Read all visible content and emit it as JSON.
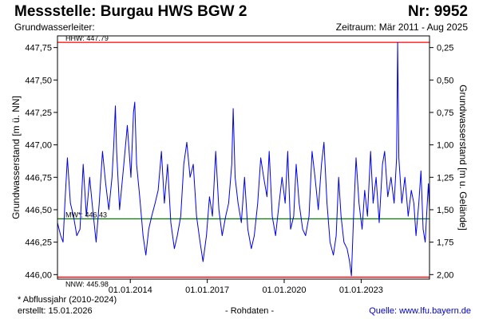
{
  "header": {
    "title": "Messstelle: Burgau HWS BGW 2",
    "nr": "Nr: 9952",
    "aquifer_label": "Grundwasserleiter:",
    "period": "Zeitraum: Mär 2011 - Aug 2025"
  },
  "footer": {
    "note": "* Abflussjahr (2010-2024)",
    "created": "erstellt:  15.01.2026",
    "raw": "- Rohdaten -",
    "source_prefix": "Quelle: ",
    "source_link": "www.lfu.bayern.de"
  },
  "colors": {
    "series": "#0000ee",
    "extreme_lines": "#ff0000",
    "mean_line": "#008000",
    "axes": "#000000"
  },
  "chart_data": {
    "type": "line",
    "ylabel": "Grundwasserstand [m ü. NN]",
    "y2label": "Grundwasserstand [m u. Gelände]",
    "ylim": [
      445.965,
      447.84
    ],
    "y_ticks": [
      "447,75",
      "447,50",
      "447,25",
      "447,00",
      "446,75",
      "446,50",
      "446,25",
      "446,00"
    ],
    "y_tick_values": [
      447.75,
      447.5,
      447.25,
      447.0,
      446.75,
      446.5,
      446.25,
      446.0
    ],
    "y2_ticks": [
      "0,25",
      "0,50",
      "0,75",
      "1,00",
      "1,25",
      "1,50",
      "1,75",
      "2,00"
    ],
    "y2_tick_values": [
      0.25,
      0.5,
      0.75,
      1.0,
      1.25,
      1.5,
      1.75,
      2.0
    ],
    "x_range": [
      "2011-03-01",
      "2025-08-31"
    ],
    "x_ticks": [
      "01.01.2014",
      "01.01.2017",
      "01.01.2020",
      "01.01.2023"
    ],
    "x_tick_dates": [
      "2014-01-01",
      "2017-01-01",
      "2020-01-01",
      "2023-01-01"
    ],
    "reference_lines": [
      {
        "label": "HHW: 447.79",
        "value": 447.79,
        "color": "#ff0000"
      },
      {
        "label": "MW*: 446.43",
        "value": 446.43,
        "color": "#008000"
      },
      {
        "label": "NNW: 445.98",
        "value": 445.98,
        "color": "#ff0000"
      }
    ],
    "grid": false,
    "series": [
      {
        "color": "#0000ee",
        "points": [
          [
            "2011-03-01",
            446.4
          ],
          [
            "2011-04-15",
            446.3
          ],
          [
            "2011-05-20",
            446.25
          ],
          [
            "2011-06-15",
            446.55
          ],
          [
            "2011-07-20",
            446.9
          ],
          [
            "2011-09-01",
            446.55
          ],
          [
            "2011-10-15",
            446.45
          ],
          [
            "2011-12-01",
            446.3
          ],
          [
            "2012-01-15",
            446.35
          ],
          [
            "2012-03-01",
            446.85
          ],
          [
            "2012-04-15",
            446.45
          ],
          [
            "2012-06-01",
            446.75
          ],
          [
            "2012-07-15",
            446.5
          ],
          [
            "2012-09-01",
            446.25
          ],
          [
            "2012-10-15",
            446.55
          ],
          [
            "2012-12-01",
            446.95
          ],
          [
            "2013-01-15",
            446.7
          ],
          [
            "2013-03-01",
            446.5
          ],
          [
            "2013-04-15",
            446.75
          ],
          [
            "2013-05-10",
            447.0
          ],
          [
            "2013-06-02",
            447.3
          ],
          [
            "2013-06-20",
            446.95
          ],
          [
            "2013-08-01",
            446.5
          ],
          [
            "2013-10-01",
            446.85
          ],
          [
            "2013-11-20",
            447.15
          ],
          [
            "2014-01-10",
            446.75
          ],
          [
            "2014-02-15",
            447.25
          ],
          [
            "2014-03-05",
            447.33
          ],
          [
            "2014-04-01",
            446.85
          ],
          [
            "2014-05-15",
            446.6
          ],
          [
            "2014-07-01",
            446.3
          ],
          [
            "2014-08-10",
            446.15
          ],
          [
            "2014-09-20",
            446.35
          ],
          [
            "2014-11-01",
            446.45
          ],
          [
            "2014-12-20",
            446.55
          ],
          [
            "2015-02-01",
            446.65
          ],
          [
            "2015-03-20",
            446.95
          ],
          [
            "2015-05-01",
            446.55
          ],
          [
            "2015-06-15",
            446.85
          ],
          [
            "2015-08-01",
            446.4
          ],
          [
            "2015-09-20",
            446.2
          ],
          [
            "2015-11-01",
            446.3
          ],
          [
            "2015-12-20",
            446.45
          ],
          [
            "2016-02-01",
            446.85
          ],
          [
            "2016-03-15",
            447.02
          ],
          [
            "2016-05-01",
            446.75
          ],
          [
            "2016-06-15",
            446.85
          ],
          [
            "2016-08-01",
            446.45
          ],
          [
            "2016-09-20",
            446.25
          ],
          [
            "2016-11-01",
            446.1
          ],
          [
            "2016-12-20",
            446.3
          ],
          [
            "2017-02-01",
            446.6
          ],
          [
            "2017-03-15",
            446.45
          ],
          [
            "2017-05-01",
            446.95
          ],
          [
            "2017-06-15",
            446.5
          ],
          [
            "2017-08-01",
            446.3
          ],
          [
            "2017-09-20",
            446.45
          ],
          [
            "2017-11-01",
            446.55
          ],
          [
            "2017-12-15",
            446.85
          ],
          [
            "2018-01-05",
            447.28
          ],
          [
            "2018-02-01",
            446.75
          ],
          [
            "2018-03-15",
            446.55
          ],
          [
            "2018-05-01",
            446.4
          ],
          [
            "2018-06-15",
            446.75
          ],
          [
            "2018-08-01",
            446.35
          ],
          [
            "2018-09-20",
            446.2
          ],
          [
            "2018-11-01",
            446.3
          ],
          [
            "2018-12-20",
            446.55
          ],
          [
            "2019-02-01",
            446.9
          ],
          [
            "2019-03-15",
            446.75
          ],
          [
            "2019-05-01",
            446.6
          ],
          [
            "2019-06-01",
            446.95
          ],
          [
            "2019-07-15",
            446.45
          ],
          [
            "2019-09-01",
            446.3
          ],
          [
            "2019-10-20",
            446.55
          ],
          [
            "2019-12-01",
            446.75
          ],
          [
            "2020-01-15",
            446.55
          ],
          [
            "2020-02-20",
            446.95
          ],
          [
            "2020-04-01",
            446.35
          ],
          [
            "2020-05-15",
            446.45
          ],
          [
            "2020-06-20",
            446.85
          ],
          [
            "2020-08-01",
            446.55
          ],
          [
            "2020-09-20",
            446.35
          ],
          [
            "2020-11-01",
            446.3
          ],
          [
            "2020-12-20",
            446.45
          ],
          [
            "2021-02-01",
            446.95
          ],
          [
            "2021-03-15",
            446.75
          ],
          [
            "2021-05-01",
            446.5
          ],
          [
            "2021-06-15",
            446.85
          ],
          [
            "2021-07-20",
            447.02
          ],
          [
            "2021-09-01",
            446.55
          ],
          [
            "2021-10-15",
            446.25
          ],
          [
            "2021-12-01",
            446.15
          ],
          [
            "2022-01-10",
            446.3
          ],
          [
            "2022-02-15",
            446.75
          ],
          [
            "2022-03-20",
            446.45
          ],
          [
            "2022-05-01",
            446.25
          ],
          [
            "2022-06-15",
            446.2
          ],
          [
            "2022-07-20",
            446.1
          ],
          [
            "2022-08-15",
            445.99
          ],
          [
            "2022-09-15",
            446.45
          ],
          [
            "2022-10-20",
            446.9
          ],
          [
            "2022-12-01",
            446.55
          ],
          [
            "2023-01-15",
            446.35
          ],
          [
            "2023-02-20",
            446.65
          ],
          [
            "2023-04-01",
            446.45
          ],
          [
            "2023-05-15",
            446.95
          ],
          [
            "2023-06-20",
            446.55
          ],
          [
            "2023-08-01",
            446.75
          ],
          [
            "2023-09-15",
            446.4
          ],
          [
            "2023-11-01",
            446.85
          ],
          [
            "2023-12-01",
            446.95
          ],
          [
            "2024-01-15",
            446.6
          ],
          [
            "2024-03-01",
            446.75
          ],
          [
            "2024-04-15",
            446.55
          ],
          [
            "2024-05-20",
            446.9
          ],
          [
            "2024-06-03",
            447.79
          ],
          [
            "2024-06-20",
            446.9
          ],
          [
            "2024-08-01",
            446.55
          ],
          [
            "2024-09-15",
            446.75
          ],
          [
            "2024-11-01",
            446.45
          ],
          [
            "2024-12-15",
            446.65
          ],
          [
            "2025-01-20",
            446.55
          ],
          [
            "2025-02-20",
            446.3
          ],
          [
            "2025-04-01",
            446.55
          ],
          [
            "2025-05-01",
            446.8
          ],
          [
            "2025-06-01",
            446.35
          ],
          [
            "2025-07-01",
            446.25
          ],
          [
            "2025-07-20",
            446.45
          ],
          [
            "2025-08-15",
            446.7
          ],
          [
            "2025-08-31",
            446.5
          ]
        ]
      }
    ]
  }
}
